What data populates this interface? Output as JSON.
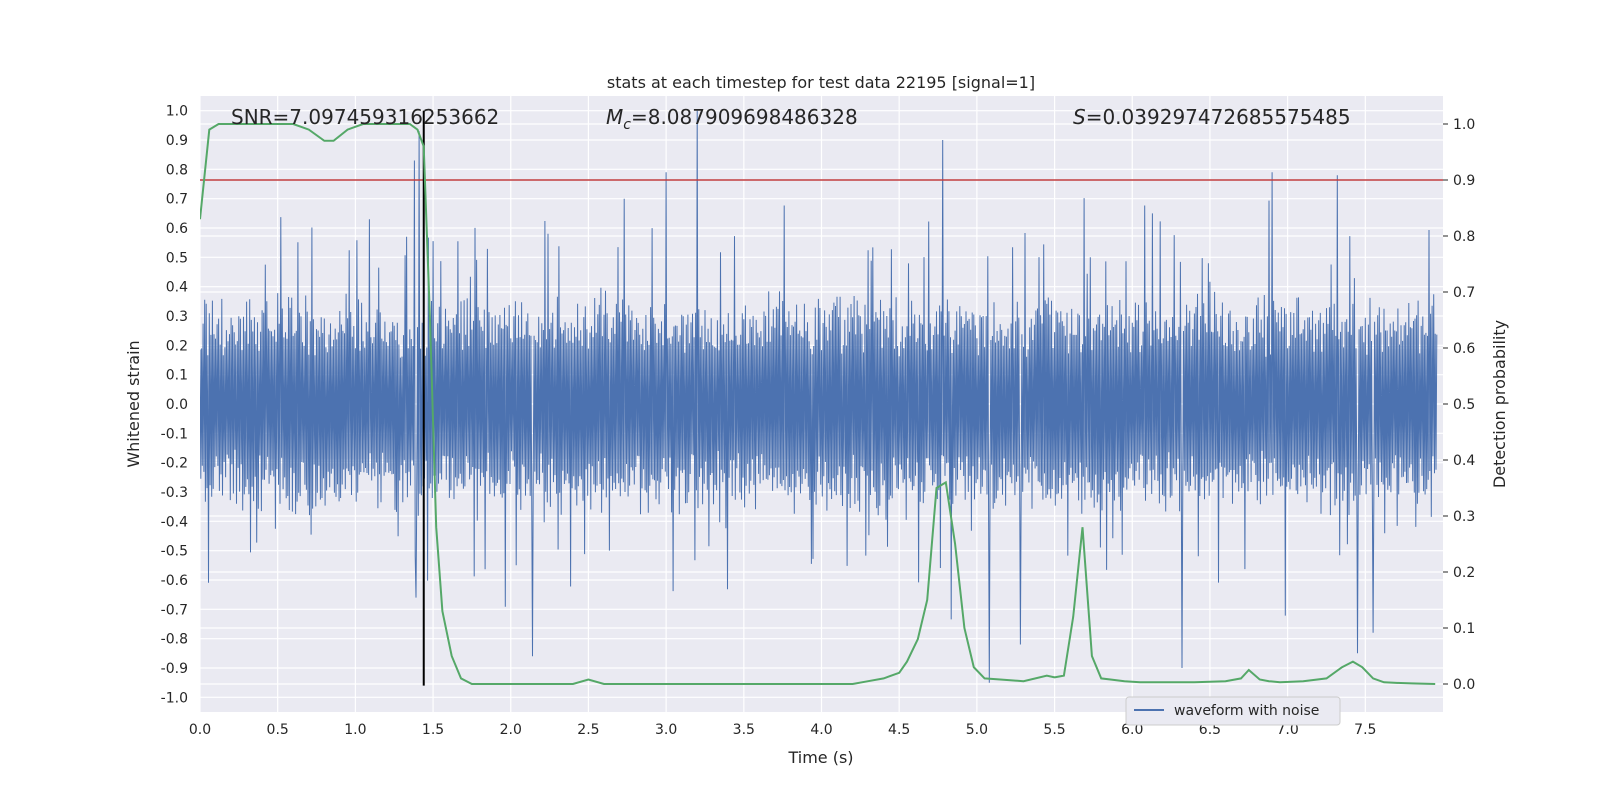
{
  "chart_data": {
    "type": "line",
    "title": "stats at each timestep for test data 22195 [signal=1]",
    "xlabel": "Time (s)",
    "ylabel_left": "Whitened strain",
    "ylabel_right": "Detection probability",
    "xlim": [
      0.0,
      8.0
    ],
    "ylim_left": [
      -1.05,
      1.05
    ],
    "ylim_right": [
      -0.05,
      1.05
    ],
    "x_ticks": [
      "0.0",
      "0.5",
      "1.0",
      "1.5",
      "2.0",
      "2.5",
      "3.0",
      "3.5",
      "4.0",
      "4.5",
      "5.0",
      "5.5",
      "6.0",
      "6.5",
      "7.0",
      "7.5"
    ],
    "y_ticks_left": [
      "-1.0",
      "-0.9",
      "-0.8",
      "-0.7",
      "-0.6",
      "-0.5",
      "-0.4",
      "-0.3",
      "-0.2",
      "-0.1",
      "0.0",
      "0.1",
      "0.2",
      "0.3",
      "0.4",
      "0.5",
      "0.6",
      "0.7",
      "0.8",
      "0.9",
      "1.0"
    ],
    "y_ticks_right": [
      "0.0",
      "0.1",
      "0.2",
      "0.3",
      "0.4",
      "0.5",
      "0.6",
      "0.7",
      "0.8",
      "0.9",
      "1.0"
    ],
    "annotations": {
      "snr": "SNR=7.097459316253662",
      "mc_symbol": "M",
      "mc_sub": "c",
      "mc_value": "=8.087909698486328",
      "s_symbol": "S",
      "s_value": "=0.039297472685575485"
    },
    "threshold_right": 0.9,
    "threshold_color": "#c03d3e",
    "event_time": 1.44,
    "event_line_range_left": [
      -0.96,
      1.0
    ],
    "series": [
      {
        "name": "waveform with noise",
        "axis": "left",
        "color": "#4c72b0",
        "envelope_base": 0.4,
        "n_samples": 1600,
        "spikes": [
          {
            "t": 1.38,
            "v": 0.83
          },
          {
            "t": 1.41,
            "v": 0.93
          },
          {
            "t": 1.39,
            "v": -0.66
          },
          {
            "t": 3.2,
            "v": 1.0
          },
          {
            "t": 3.0,
            "v": 0.79
          },
          {
            "t": 2.14,
            "v": -0.86
          },
          {
            "t": 4.78,
            "v": 0.9
          },
          {
            "t": 5.08,
            "v": -0.95
          },
          {
            "t": 5.28,
            "v": -0.82
          },
          {
            "t": 6.32,
            "v": -0.9
          },
          {
            "t": 7.45,
            "v": -0.85
          },
          {
            "t": 7.55,
            "v": -0.78
          },
          {
            "t": 7.32,
            "v": 0.78
          },
          {
            "t": 6.9,
            "v": 0.79
          }
        ]
      },
      {
        "name": "detection probability",
        "axis": "right",
        "color": "#55a868",
        "x": [
          0.0,
          0.06,
          0.12,
          0.2,
          0.3,
          0.4,
          0.5,
          0.6,
          0.7,
          0.8,
          0.86,
          0.95,
          1.05,
          1.2,
          1.35,
          1.4,
          1.44,
          1.48,
          1.52,
          1.56,
          1.62,
          1.68,
          1.75,
          1.85,
          2.0,
          2.2,
          2.4,
          2.5,
          2.6,
          2.8,
          3.0,
          3.2,
          3.4,
          3.6,
          3.8,
          4.0,
          4.2,
          4.3,
          4.4,
          4.5,
          4.55,
          4.62,
          4.68,
          4.74,
          4.8,
          4.86,
          4.92,
          4.98,
          5.05,
          5.15,
          5.3,
          5.45,
          5.5,
          5.56,
          5.62,
          5.68,
          5.74,
          5.8,
          5.86,
          5.95,
          6.05,
          6.2,
          6.4,
          6.6,
          6.7,
          6.75,
          6.82,
          6.88,
          6.95,
          7.1,
          7.25,
          7.35,
          7.42,
          7.48,
          7.55,
          7.62,
          7.7,
          7.8,
          7.95
        ],
        "values": [
          0.83,
          0.99,
          1.0,
          1.0,
          1.0,
          1.0,
          1.0,
          1.0,
          0.99,
          0.97,
          0.97,
          0.99,
          1.0,
          1.0,
          1.0,
          0.99,
          0.96,
          0.65,
          0.28,
          0.13,
          0.05,
          0.01,
          0.0,
          0.0,
          0.0,
          0.0,
          0.0,
          0.008,
          0.0,
          0.0,
          0.0,
          0.0,
          0.0,
          0.0,
          0.0,
          0.0,
          0.0,
          0.005,
          0.01,
          0.02,
          0.04,
          0.08,
          0.15,
          0.35,
          0.36,
          0.25,
          0.1,
          0.03,
          0.01,
          0.008,
          0.005,
          0.015,
          0.012,
          0.015,
          0.12,
          0.28,
          0.05,
          0.01,
          0.008,
          0.005,
          0.003,
          0.003,
          0.003,
          0.005,
          0.01,
          0.025,
          0.008,
          0.005,
          0.003,
          0.005,
          0.01,
          0.03,
          0.04,
          0.03,
          0.01,
          0.003,
          0.002,
          0.001,
          0.0
        ]
      }
    ],
    "legend": {
      "position": "lower-right",
      "entries": [
        "waveform with noise"
      ]
    }
  }
}
